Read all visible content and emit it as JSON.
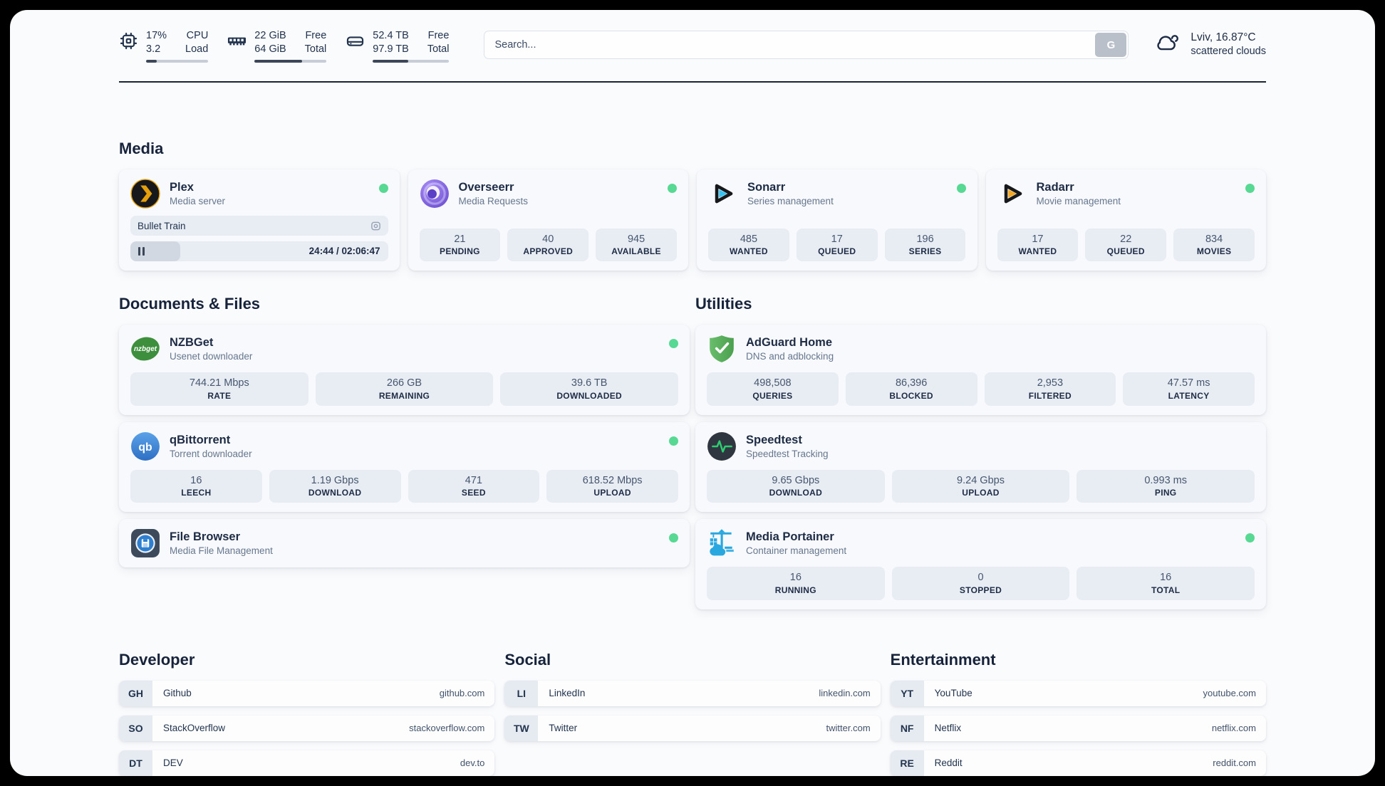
{
  "colors": {
    "status_online": "#57d993",
    "accent_dark": "#1d2b45",
    "bar_fill": "#3b4759",
    "stat_box_bg": "#e8edf4"
  },
  "topbar": {
    "metrics": [
      {
        "icon": "cpu-icon",
        "values": [
          "17%",
          "3.2"
        ],
        "labels": [
          "CPU",
          "Load"
        ],
        "progress": 17
      },
      {
        "icon": "memory-icon",
        "values": [
          "22 GiB",
          "64 GiB"
        ],
        "labels": [
          "Free",
          "Total"
        ],
        "progress": 66
      },
      {
        "icon": "disk-icon",
        "values": [
          "52.4 TB",
          "97.9 TB"
        ],
        "labels": [
          "Free",
          "Total"
        ],
        "progress": 46
      }
    ],
    "search": {
      "placeholder": "Search...",
      "button_label": "G"
    },
    "weather": {
      "icon": "cloud-icon",
      "location": "Lviv, 16.87°C",
      "condition": "scattered clouds"
    }
  },
  "media": {
    "title": "Media",
    "plex": {
      "name": "Plex",
      "description": "Media server",
      "icon": "plex-logo-icon",
      "online": true,
      "now_playing": "Bullet Train",
      "time": "24:44 / 02:06:47",
      "progress_percent": 19.5
    },
    "overseerr": {
      "name": "Overseerr",
      "description": "Media Requests",
      "icon": "overseerr-logo-icon",
      "online": true,
      "stats": [
        {
          "value": "21",
          "label": "PENDING"
        },
        {
          "value": "40",
          "label": "APPROVED"
        },
        {
          "value": "945",
          "label": "AVAILABLE"
        }
      ]
    },
    "sonarr": {
      "name": "Sonarr",
      "description": "Series management",
      "icon": "sonarr-logo-icon",
      "online": true,
      "stats": [
        {
          "value": "485",
          "label": "WANTED"
        },
        {
          "value": "17",
          "label": "QUEUED"
        },
        {
          "value": "196",
          "label": "SERIES"
        }
      ]
    },
    "radarr": {
      "name": "Radarr",
      "description": "Movie management",
      "icon": "radarr-logo-icon",
      "online": true,
      "stats": [
        {
          "value": "17",
          "label": "WANTED"
        },
        {
          "value": "22",
          "label": "QUEUED"
        },
        {
          "value": "834",
          "label": "MOVIES"
        }
      ]
    }
  },
  "documents": {
    "title": "Documents & Files",
    "nzbget": {
      "name": "NZBGet",
      "description": "Usenet downloader",
      "icon": "nzbget-logo-icon",
      "online": true,
      "stats": [
        {
          "value": "744.21 Mbps",
          "label": "RATE"
        },
        {
          "value": "266 GB",
          "label": "REMAINING"
        },
        {
          "value": "39.6 TB",
          "label": "DOWNLOADED"
        }
      ]
    },
    "qbittorrent": {
      "name": "qBittorrent",
      "description": "Torrent downloader",
      "icon": "qbittorrent-logo-icon",
      "online": true,
      "stats": [
        {
          "value": "16",
          "label": "LEECH"
        },
        {
          "value": "1.19 Gbps",
          "label": "DOWNLOAD"
        },
        {
          "value": "471",
          "label": "SEED"
        },
        {
          "value": "618.52 Mbps",
          "label": "UPLOAD"
        }
      ]
    },
    "filebrowser": {
      "name": "File Browser",
      "description": "Media File Management",
      "icon": "filebrowser-logo-icon",
      "online": true
    }
  },
  "utilities": {
    "title": "Utilities",
    "adguard": {
      "name": "AdGuard Home",
      "description": "DNS and adblocking",
      "icon": "adguard-logo-icon",
      "online": false,
      "stats": [
        {
          "value": "498,508",
          "label": "QUERIES"
        },
        {
          "value": "86,396",
          "label": "BLOCKED"
        },
        {
          "value": "2,953",
          "label": "FILTERED"
        },
        {
          "value": "47.57 ms",
          "label": "LATENCY"
        }
      ]
    },
    "speedtest": {
      "name": "Speedtest",
      "description": "Speedtest Tracking",
      "icon": "speedtest-logo-icon",
      "online": false,
      "stats": [
        {
          "value": "9.65 Gbps",
          "label": "DOWNLOAD"
        },
        {
          "value": "9.24 Gbps",
          "label": "UPLOAD"
        },
        {
          "value": "0.993 ms",
          "label": "PING"
        }
      ]
    },
    "portainer": {
      "name": "Media Portainer",
      "description": "Container management",
      "icon": "portainer-logo-icon",
      "online": true,
      "stats": [
        {
          "value": "16",
          "label": "RUNNING"
        },
        {
          "value": "0",
          "label": "STOPPED"
        },
        {
          "value": "16",
          "label": "TOTAL"
        }
      ]
    }
  },
  "bookmarks": [
    {
      "title": "Developer",
      "links": [
        {
          "abbr": "GH",
          "name": "Github",
          "url": "github.com"
        },
        {
          "abbr": "SO",
          "name": "StackOverflow",
          "url": "stackoverflow.com"
        },
        {
          "abbr": "DT",
          "name": "DEV",
          "url": "dev.to"
        }
      ]
    },
    {
      "title": "Social",
      "links": [
        {
          "abbr": "LI",
          "name": "LinkedIn",
          "url": "linkedin.com"
        },
        {
          "abbr": "TW",
          "name": "Twitter",
          "url": "twitter.com"
        }
      ]
    },
    {
      "title": "Entertainment",
      "links": [
        {
          "abbr": "YT",
          "name": "YouTube",
          "url": "youtube.com"
        },
        {
          "abbr": "NF",
          "name": "Netflix",
          "url": "netflix.com"
        },
        {
          "abbr": "RE",
          "name": "Reddit",
          "url": "reddit.com"
        }
      ]
    }
  ],
  "icon_labels": {
    "nzbget": "nzbget",
    "qbittorrent": "qb"
  }
}
